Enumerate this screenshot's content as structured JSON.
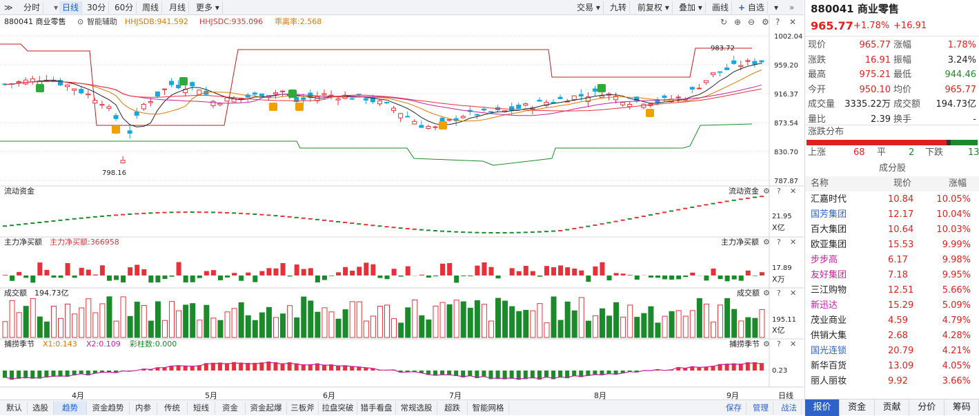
{
  "toolbar": {
    "collapse": "≫",
    "tabs": [
      "分时",
      "日线",
      "30分",
      "60分",
      "周线",
      "月线",
      "更多"
    ],
    "right": [
      "交易",
      "九转",
      "前复权",
      "叠加",
      "画线",
      "自选"
    ]
  },
  "price": {
    "title": "880041 商业零售",
    "assist": "智能辅助",
    "hhjsdb": "HHJSDB:941.592",
    "hhjsdc": "HHJSDC:935.096",
    "dev": "乖离率:2.568",
    "high": "983.72",
    "low": "798.16",
    "axis": [
      "1002.04",
      "959.20",
      "916.37",
      "873.54",
      "830.70",
      "787.87"
    ]
  },
  "flow": {
    "title": "流动资金",
    "right": "流动资金",
    "axis": "21.95",
    "unit": "X亿"
  },
  "net": {
    "title": "主力净买额",
    "value": "主力净买额:366958",
    "right": "主力净买额",
    "axis": "17.89",
    "unit": "X万"
  },
  "volume": {
    "title": "成交额",
    "value": "194.73亿",
    "right": "成交额",
    "axis": "195.11",
    "unit": "X亿"
  },
  "season": {
    "title": "捕捞季节",
    "x1": "X1:0.143",
    "x2": "X2:0.109",
    "bar": "彩柱数:0.000",
    "right": "捕捞季节",
    "axis": "0.23"
  },
  "months": [
    "4月",
    "5月",
    "6月",
    "7月",
    "8月",
    "9月"
  ],
  "period_label": "日线",
  "bottom": {
    "tabs": [
      "默认",
      "选股",
      "趋势",
      "资金趋势",
      "内参",
      "传统",
      "短线",
      "资金",
      "资金起爆",
      "三板斧",
      "拉盘突破",
      "猎手看盘",
      "常规选股",
      "超跌",
      "智能网格"
    ],
    "right": [
      "保存",
      "管理",
      "战法"
    ]
  },
  "side": {
    "title": "880041 商业零售",
    "price": "965.77",
    "pct": "+1.78%",
    "chg": "+16.91",
    "stats": [
      [
        "现价",
        "965.77",
        "涨幅",
        "1.78%"
      ],
      [
        "涨跌",
        "16.91",
        "振幅",
        "3.24%"
      ],
      [
        "最高",
        "975.21",
        "最低",
        "944.46"
      ],
      [
        "今开",
        "950.10",
        "均价",
        "965.77"
      ],
      [
        "成交量",
        "3335.22万",
        "成交额",
        "194.73亿"
      ],
      [
        "量比",
        "2.39",
        "换手",
        "-"
      ]
    ],
    "dist_title": "涨跌分布",
    "up_label": "上涨",
    "up": "68",
    "flat_label": "平",
    "flat": "2",
    "down_label": "下跌",
    "down": "13",
    "comp_title": "成分股",
    "cols": [
      "名称",
      "现价",
      "涨幅"
    ],
    "stocks": [
      [
        "汇嘉时代",
        "10.84",
        "10.05%"
      ],
      [
        "国芳集团",
        "12.17",
        "10.04%"
      ],
      [
        "百大集团",
        "10.64",
        "10.03%"
      ],
      [
        "欧亚集团",
        "15.53",
        "9.99%"
      ],
      [
        "步步高",
        "6.17",
        "9.98%"
      ],
      [
        "友好集团",
        "7.18",
        "9.95%"
      ],
      [
        "三江购物",
        "12.51",
        "5.66%"
      ],
      [
        "新迅达",
        "15.29",
        "5.09%"
      ],
      [
        "茂业商业",
        "4.59",
        "4.79%"
      ],
      [
        "供销大集",
        "2.68",
        "4.28%"
      ],
      [
        "国光连锁",
        "20.79",
        "4.21%"
      ],
      [
        "新华百货",
        "13.09",
        "4.05%"
      ],
      [
        "丽人丽妆",
        "9.92",
        "3.66%"
      ]
    ],
    "tabs": [
      "报价",
      "资金",
      "贡献",
      "分价",
      "筹码"
    ]
  },
  "colors": {
    "up": "#e8303a",
    "down": "#14a8e0",
    "vol_down": "#1a8a2a",
    "accent": "#2f62c8"
  }
}
